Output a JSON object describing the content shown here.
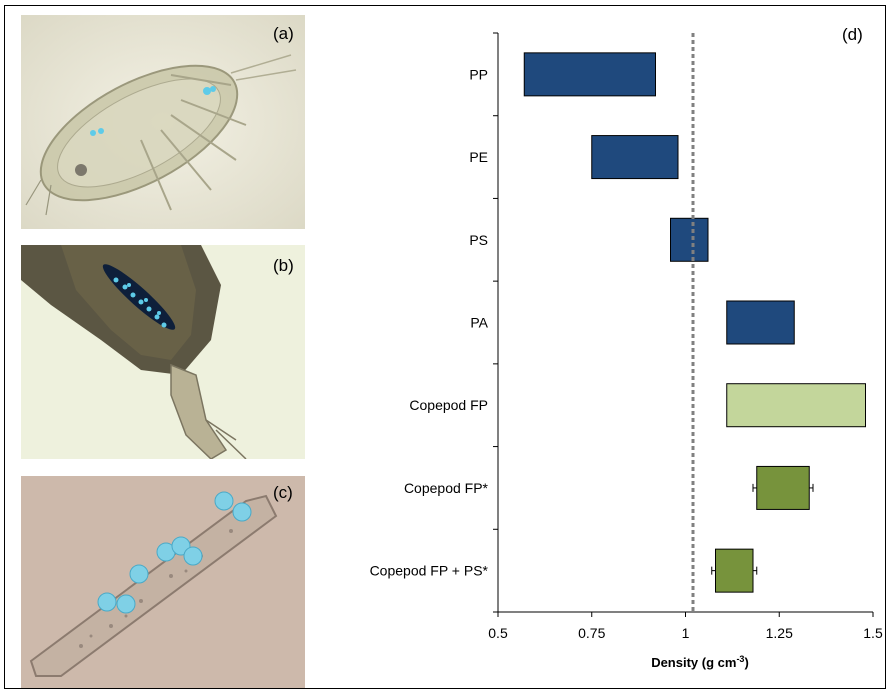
{
  "panels": {
    "a": {
      "tag": "(a)"
    },
    "b": {
      "tag": "(b)"
    },
    "c": {
      "tag": "(c)"
    },
    "d": {
      "tag": "(d)"
    }
  },
  "colors": {
    "polymer_bar": "#1f497d",
    "fp_light": "#c3d69b",
    "fp_dark": "#77933c",
    "reference_line": "#808080",
    "microplastic_blue": "#5ecbe8"
  },
  "chart_data": {
    "type": "bar",
    "orientation": "horizontal-floating",
    "title": "",
    "xlabel_main": "Density (g cm",
    "xlabel_sup": "-3",
    "xlabel_end": ")",
    "ylabel": "",
    "xlim": [
      0.5,
      1.5
    ],
    "xticks": [
      0.5,
      0.75,
      1,
      1.25,
      1.5
    ],
    "xtick_labels": [
      "0.5",
      "0.75",
      "1",
      "1.25",
      "1.5"
    ],
    "reference_line": 1.02,
    "grid": false,
    "categories": [
      "PP",
      "PE",
      "PS",
      "PA",
      "Copepod FP",
      "Copepod FP*",
      "Copepod FP + PS*"
    ],
    "ranges": [
      {
        "category": "PP",
        "low": 0.57,
        "high": 0.92,
        "color": "#1f497d"
      },
      {
        "category": "PE",
        "low": 0.75,
        "high": 0.98,
        "color": "#1f497d"
      },
      {
        "category": "PS",
        "low": 0.96,
        "high": 1.06,
        "color": "#1f497d"
      },
      {
        "category": "PA",
        "low": 1.11,
        "high": 1.29,
        "color": "#1f497d"
      },
      {
        "category": "Copepod FP",
        "low": 1.11,
        "high": 1.48,
        "color": "#c3d69b"
      },
      {
        "category": "Copepod FP*",
        "low": 1.19,
        "high": 1.33,
        "color": "#77933c",
        "err_low": 1.18,
        "err_high": 1.34
      },
      {
        "category": "Copepod FP + PS*",
        "low": 1.08,
        "high": 1.18,
        "color": "#77933c",
        "err_low": 1.07,
        "err_high": 1.19
      }
    ]
  }
}
